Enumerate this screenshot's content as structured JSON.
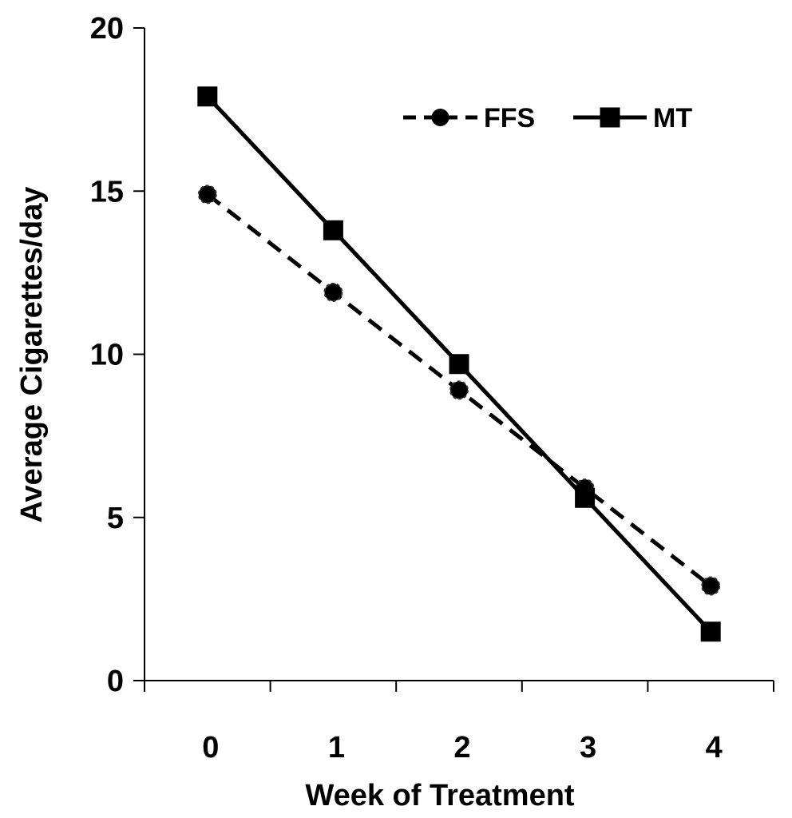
{
  "chart_data": {
    "type": "line",
    "title": "",
    "xlabel": "Week of Treatment",
    "ylabel": "Average Cigarettes/day",
    "categories": [
      "0",
      "1",
      "2",
      "3",
      "4"
    ],
    "ylim": [
      0,
      20
    ],
    "yticks": [
      0,
      5,
      10,
      15,
      20
    ],
    "ytick_labels": [
      "0",
      "5",
      "10",
      "15",
      "20"
    ],
    "grid": false,
    "legend_position": "top-right",
    "series": [
      {
        "name": "FFS",
        "values": [
          14.9,
          11.9,
          8.9,
          5.9,
          2.9
        ],
        "line_style": "dashed",
        "marker": "circle",
        "color": "#000000"
      },
      {
        "name": "MT",
        "values": [
          17.9,
          13.8,
          9.7,
          5.6,
          1.5
        ],
        "line_style": "solid",
        "marker": "square",
        "color": "#000000"
      }
    ]
  }
}
